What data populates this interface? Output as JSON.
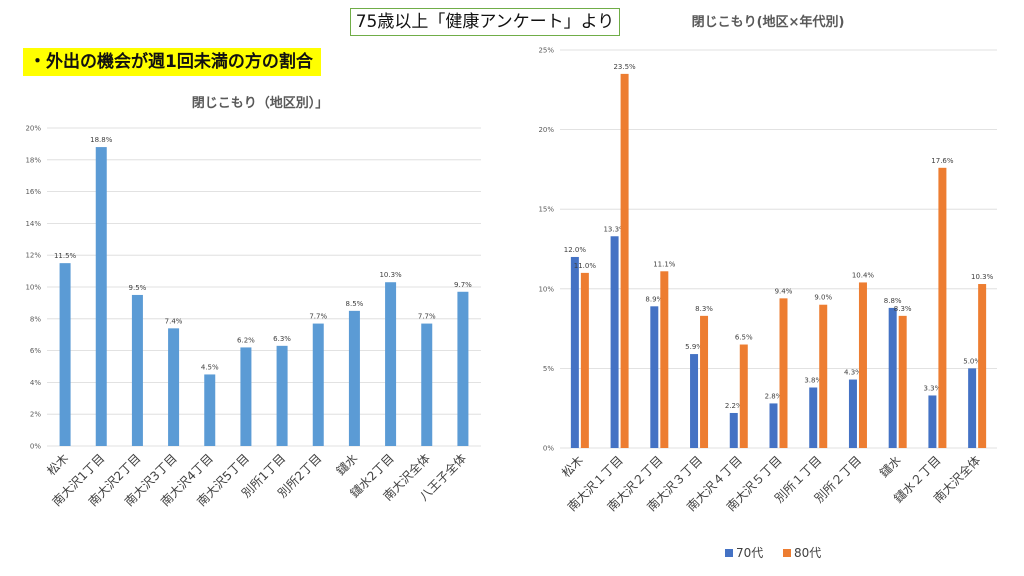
{
  "header": {
    "survey_label": "75歳以上「健康アンケート」より",
    "subtitle": "・外出の機会が週1回未満の方の割合"
  },
  "colors": {
    "bar_single": "#5b9bd5",
    "series_70": "#4472c4",
    "series_80": "#ed7d31",
    "grid": "#d9d9d9",
    "header_border": "#70ad47",
    "highlight": "#ffff00"
  },
  "chart_data": [
    {
      "type": "bar",
      "title": "閉じこもり（地区別）」",
      "categories": [
        "松木",
        "南大沢1丁目",
        "南大沢2丁目",
        "南大沢3丁目",
        "南大沢4丁目",
        "南大沢5丁目",
        "別所1丁目",
        "別所2丁目",
        "鑓水",
        "鑓水2丁目",
        "南大沢全体",
        "八王子全体"
      ],
      "values": [
        11.5,
        18.8,
        9.5,
        7.4,
        4.5,
        6.2,
        6.3,
        7.7,
        8.5,
        10.3,
        7.7,
        9.7
      ],
      "data_labels": [
        "11.5%",
        "18.8%",
        "9.5%",
        "7.4%",
        "4.5%",
        "6.2%",
        "6.3%",
        "7.7%",
        "8.5%",
        "10.3%",
        "7.7%",
        "9.7%"
      ],
      "ylim": [
        0,
        20
      ],
      "yticks": [
        0,
        2,
        4,
        6,
        8,
        10,
        12,
        14,
        16,
        18,
        20
      ],
      "ytick_labels": [
        "0%",
        "2%",
        "4%",
        "6%",
        "8%",
        "10%",
        "12%",
        "14%",
        "16%",
        "18%",
        "20%"
      ],
      "grid": true,
      "legend": "none"
    },
    {
      "type": "bar",
      "title": "閉じこもり(地区×年代別)",
      "categories": [
        "松木",
        "南大沢１丁目",
        "南大沢２丁目",
        "南大沢３丁目",
        "南大沢４丁目",
        "南大沢５丁目",
        "別所１丁目",
        "別所２丁目",
        "鑓水",
        "鑓水２丁目",
        "南大沢全体"
      ],
      "series": [
        {
          "name": "70代",
          "values": [
            12.0,
            13.3,
            8.9,
            5.9,
            2.2,
            2.8,
            3.8,
            4.3,
            8.8,
            3.3,
            5.0
          ],
          "data_labels": [
            "12.0%",
            "13.3%",
            "8.9%",
            "5.9%",
            "2.2%",
            "2.8%",
            "3.8%",
            "4.3%",
            "8.8%",
            "3.3%",
            "5.0%"
          ]
        },
        {
          "name": "80代",
          "values": [
            11.0,
            23.5,
            11.1,
            8.3,
            6.5,
            9.4,
            9.0,
            10.4,
            8.3,
            17.6,
            10.3
          ],
          "data_labels": [
            "11.0%",
            "23.5%",
            "11.1%",
            "8.3%",
            "6.5%",
            "9.4%",
            "9.0%",
            "10.4%",
            "8.3%",
            "17.6%",
            "10.3%"
          ]
        }
      ],
      "ylim": [
        0,
        25
      ],
      "yticks": [
        0,
        5,
        10,
        15,
        20,
        25
      ],
      "ytick_labels": [
        "0%",
        "5%",
        "10%",
        "15%",
        "20%",
        "25%"
      ],
      "grid": true,
      "legend": "bottom-center"
    }
  ]
}
